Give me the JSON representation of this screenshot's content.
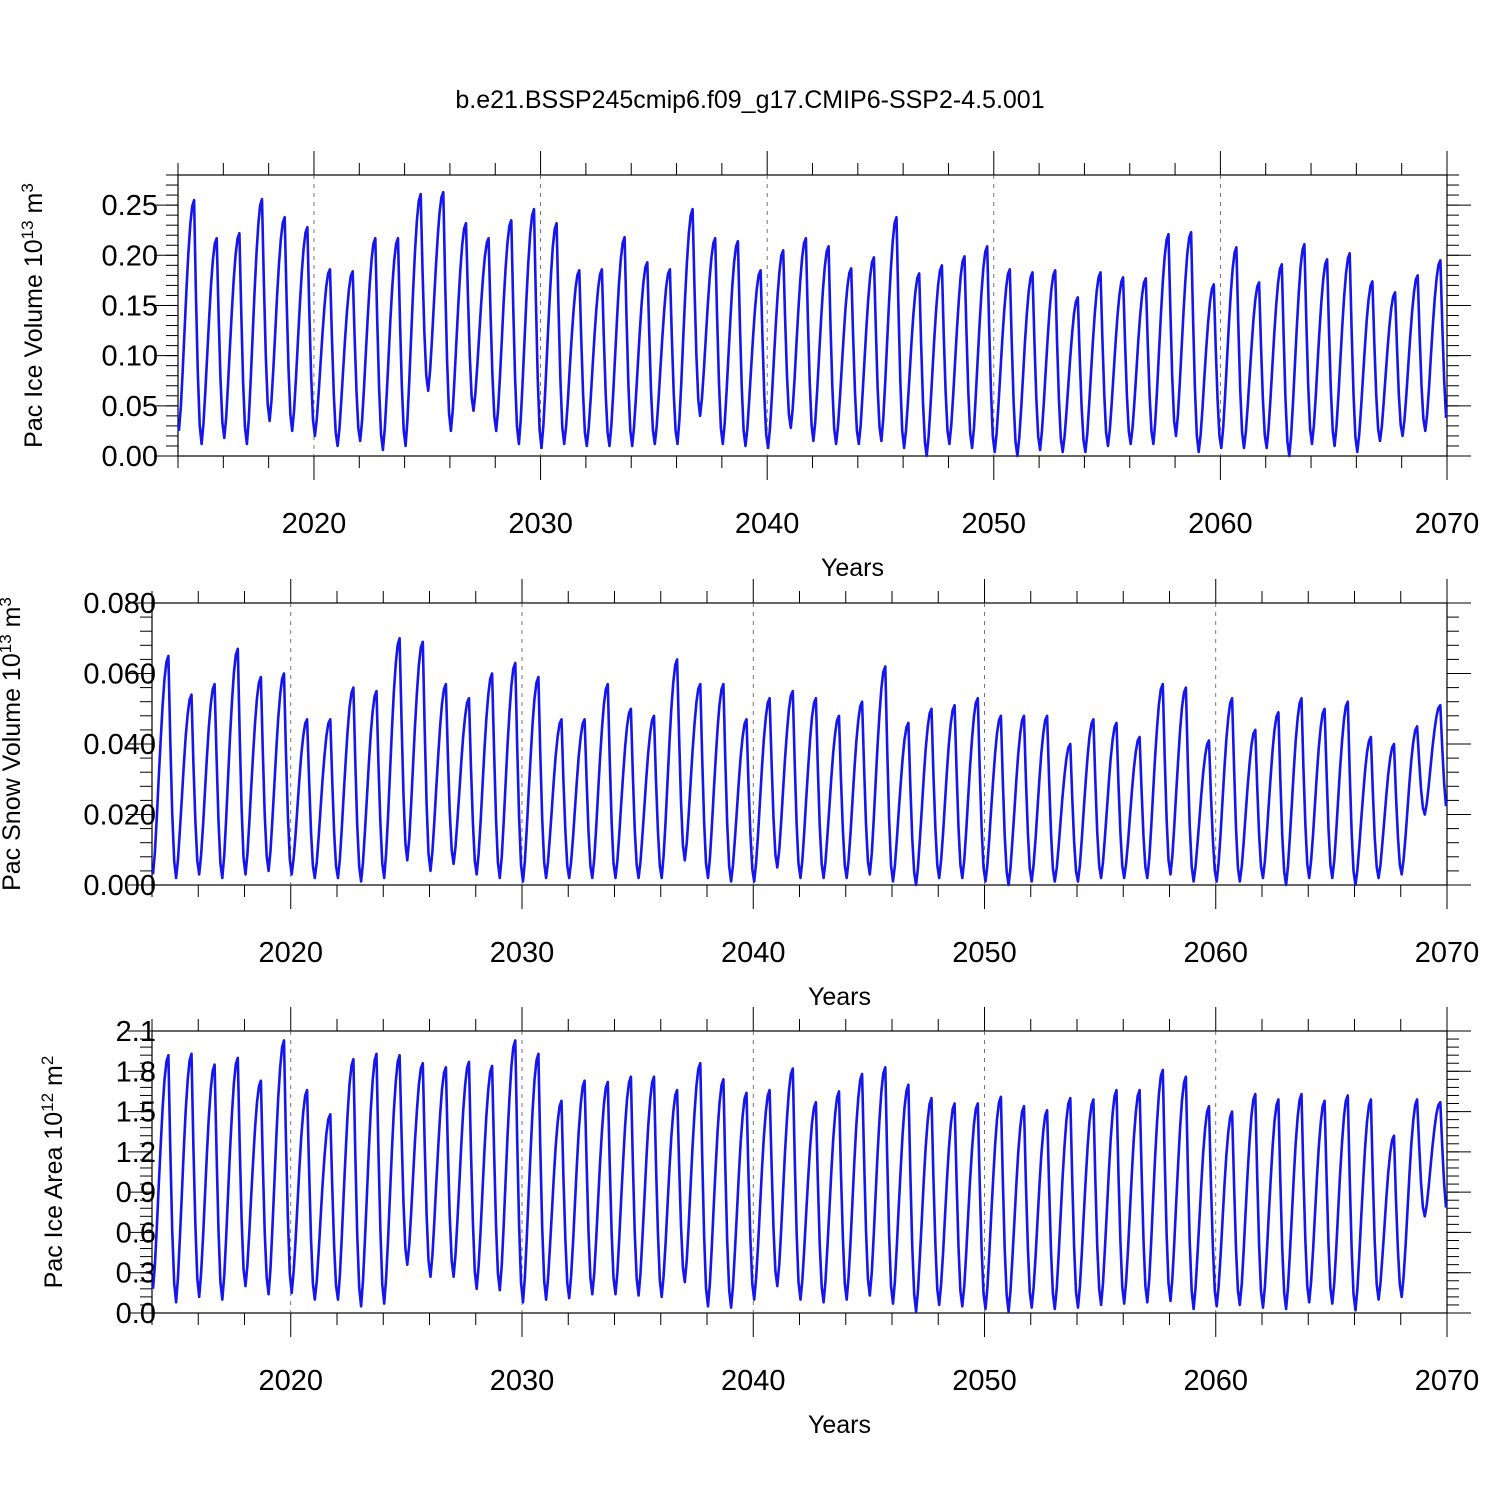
{
  "figure": {
    "title": "b.e21.BSSP245cmip6.f09_g17.CMIP6-SSP2-4.5.001"
  },
  "colors": {
    "series": "#1515ee",
    "axis": "#000000",
    "grid": "#555555"
  },
  "chart_data": [
    {
      "type": "line",
      "ylabel": "Pac Ice Volume 10",
      "ylabel_exponent": "13",
      "ylabel_unit": "m",
      "ylabel_unit_exponent": "3",
      "xlabel": "Years",
      "xlim": [
        2014.0,
        2070.0
      ],
      "ylim": [
        0.0,
        0.28
      ],
      "x_ticks": [
        2020,
        2030,
        2040,
        2050,
        2060,
        2070
      ],
      "y_ticks": [
        0.0,
        0.05,
        0.1,
        0.15,
        0.2,
        0.25
      ],
      "y_tick_labels": [
        "0.00",
        "0.05",
        "0.10",
        "0.15",
        "0.20",
        "0.25"
      ],
      "grid": "vertical dashed at decades",
      "series": [
        {
          "annual_max": [
            0.255,
            0.217,
            0.222,
            0.256,
            0.238,
            0.228,
            0.186,
            0.184,
            0.217,
            0.217,
            0.261,
            0.263,
            0.232,
            0.217,
            0.235,
            0.246,
            0.232,
            0.185,
            0.186,
            0.218,
            0.193,
            0.186,
            0.246,
            0.217,
            0.214,
            0.185,
            0.205,
            0.217,
            0.209,
            0.187,
            0.198,
            0.238,
            0.182,
            0.19,
            0.199,
            0.209,
            0.186,
            0.183,
            0.185,
            0.158,
            0.183,
            0.178,
            0.177,
            0.221,
            0.223,
            0.171,
            0.208,
            0.173,
            0.191,
            0.211,
            0.196,
            0.202,
            0.174,
            0.163,
            0.18,
            0.195
          ],
          "annual_min": [
            0.025,
            0.012,
            0.018,
            0.012,
            0.035,
            0.025,
            0.02,
            0.01,
            0.015,
            0.006,
            0.01,
            0.065,
            0.025,
            0.045,
            0.025,
            0.012,
            0.008,
            0.012,
            0.01,
            0.01,
            0.01,
            0.012,
            0.012,
            0.04,
            0.012,
            0.01,
            0.008,
            0.028,
            0.015,
            0.012,
            0.012,
            0.015,
            0.008,
            0.0,
            0.012,
            0.008,
            0.004,
            0.0,
            0.006,
            0.004,
            0.004,
            0.01,
            0.012,
            0.012,
            0.02,
            0.004,
            0.008,
            0.008,
            0.008,
            0.0,
            0.012,
            0.01,
            0.004,
            0.015,
            0.02,
            0.025
          ]
        }
      ]
    },
    {
      "type": "line",
      "ylabel": "Pac Snow Volume 10",
      "ylabel_exponent": "13",
      "ylabel_unit": "m",
      "ylabel_unit_exponent": "3",
      "xlabel": "Years",
      "xlim": [
        2014.0,
        2070.0
      ],
      "ylim": [
        0.0,
        0.08
      ],
      "x_ticks": [
        2020,
        2030,
        2040,
        2050,
        2060,
        2070
      ],
      "y_ticks": [
        0.0,
        0.02,
        0.04,
        0.06,
        0.08
      ],
      "y_tick_labels": [
        "0.000",
        "0.020",
        "0.040",
        "0.060",
        "0.080"
      ],
      "grid": "vertical dashed at decades",
      "series": [
        {
          "annual_max": [
            0.065,
            0.054,
            0.057,
            0.067,
            0.059,
            0.06,
            0.047,
            0.047,
            0.056,
            0.055,
            0.07,
            0.069,
            0.057,
            0.053,
            0.06,
            0.063,
            0.059,
            0.047,
            0.047,
            0.057,
            0.05,
            0.048,
            0.064,
            0.057,
            0.057,
            0.047,
            0.053,
            0.055,
            0.053,
            0.048,
            0.052,
            0.062,
            0.046,
            0.05,
            0.051,
            0.053,
            0.048,
            0.048,
            0.048,
            0.04,
            0.047,
            0.046,
            0.042,
            0.057,
            0.056,
            0.041,
            0.053,
            0.044,
            0.049,
            0.053,
            0.05,
            0.052,
            0.042,
            0.04,
            0.045,
            0.051
          ],
          "annual_min": [
            0.003,
            0.002,
            0.003,
            0.002,
            0.003,
            0.004,
            0.003,
            0.002,
            0.002,
            0.001,
            0.002,
            0.007,
            0.004,
            0.006,
            0.003,
            0.002,
            0.001,
            0.002,
            0.002,
            0.002,
            0.002,
            0.002,
            0.002,
            0.007,
            0.002,
            0.001,
            0.001,
            0.005,
            0.002,
            0.002,
            0.002,
            0.003,
            0.001,
            0.0,
            0.002,
            0.002,
            0.001,
            0.0,
            0.001,
            0.001,
            0.001,
            0.002,
            0.002,
            0.002,
            0.003,
            0.001,
            0.001,
            0.001,
            0.002,
            0.0,
            0.002,
            0.002,
            0.0,
            0.002,
            0.003,
            0.02
          ]
        }
      ]
    },
    {
      "type": "line",
      "ylabel": "Pac Ice Area 10",
      "ylabel_exponent": "12",
      "ylabel_unit": "m",
      "ylabel_unit_exponent": "2",
      "xlabel": "Years",
      "xlim": [
        2014.0,
        2070.0
      ],
      "ylim": [
        0.0,
        2.1
      ],
      "x_ticks": [
        2020,
        2030,
        2040,
        2050,
        2060,
        2070
      ],
      "y_ticks": [
        0.0,
        0.3,
        0.6,
        0.9,
        1.2,
        1.5,
        1.8,
        2.1
      ],
      "y_tick_labels": [
        "0.0",
        "0.3",
        "0.6",
        "0.9",
        "1.2",
        "1.5",
        "1.8",
        "2.1"
      ],
      "grid": "vertical dashed at decades",
      "series": [
        {
          "annual_max": [
            1.92,
            1.93,
            1.85,
            1.9,
            1.73,
            2.03,
            1.66,
            1.48,
            1.89,
            1.93,
            1.92,
            1.86,
            1.83,
            1.87,
            1.84,
            2.03,
            1.93,
            1.58,
            1.73,
            1.72,
            1.76,
            1.76,
            1.66,
            1.86,
            1.74,
            1.64,
            1.66,
            1.82,
            1.57,
            1.65,
            1.78,
            1.83,
            1.7,
            1.6,
            1.56,
            1.56,
            1.61,
            1.54,
            1.51,
            1.6,
            1.59,
            1.66,
            1.66,
            1.81,
            1.76,
            1.54,
            1.5,
            1.63,
            1.59,
            1.63,
            1.58,
            1.62,
            1.59,
            1.32,
            1.59,
            1.57
          ],
          "annual_min": [
            0.18,
            0.08,
            0.12,
            0.1,
            0.2,
            0.14,
            0.15,
            0.1,
            0.1,
            0.05,
            0.07,
            0.36,
            0.27,
            0.27,
            0.18,
            0.17,
            0.08,
            0.1,
            0.11,
            0.14,
            0.14,
            0.13,
            0.12,
            0.23,
            0.05,
            0.04,
            0.1,
            0.2,
            0.1,
            0.08,
            0.1,
            0.13,
            0.07,
            0.01,
            0.06,
            0.05,
            0.03,
            0.01,
            0.04,
            0.03,
            0.04,
            0.06,
            0.07,
            0.08,
            0.09,
            0.03,
            0.05,
            0.06,
            0.04,
            0.03,
            0.08,
            0.07,
            0.02,
            0.1,
            0.12,
            0.72
          ]
        }
      ]
    }
  ]
}
